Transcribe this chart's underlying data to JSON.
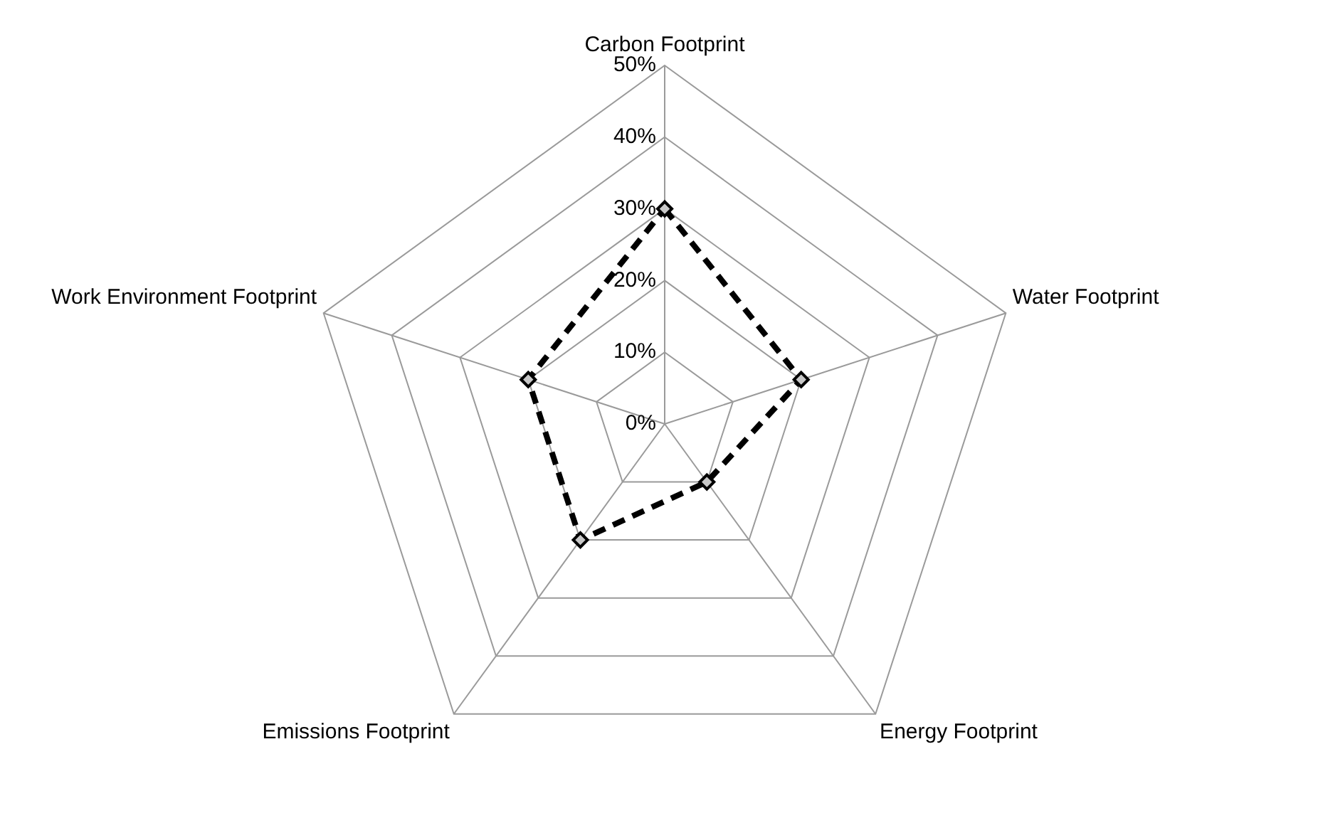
{
  "chart_data": {
    "type": "radar",
    "categories": [
      "Carbon Footprint",
      "Water Footprint",
      "Energy Footprint",
      "Emissions Footprint",
      "Work Environment Footprint"
    ],
    "series": [
      {
        "color": "#000000",
        "values": [
          30,
          20,
          10,
          20,
          20
        ]
      }
    ],
    "ylim": [
      0,
      50
    ],
    "yticks": [
      {
        "value": 0,
        "label": "0%"
      },
      {
        "value": 10,
        "label": "10%"
      },
      {
        "value": 20,
        "label": "20%"
      },
      {
        "value": 30,
        "label": "30%"
      },
      {
        "value": 40,
        "label": "40%"
      },
      {
        "value": 50,
        "label": "50%"
      }
    ],
    "grid": true,
    "legend": false,
    "marker": "diamond",
    "line_style": "dashed"
  }
}
